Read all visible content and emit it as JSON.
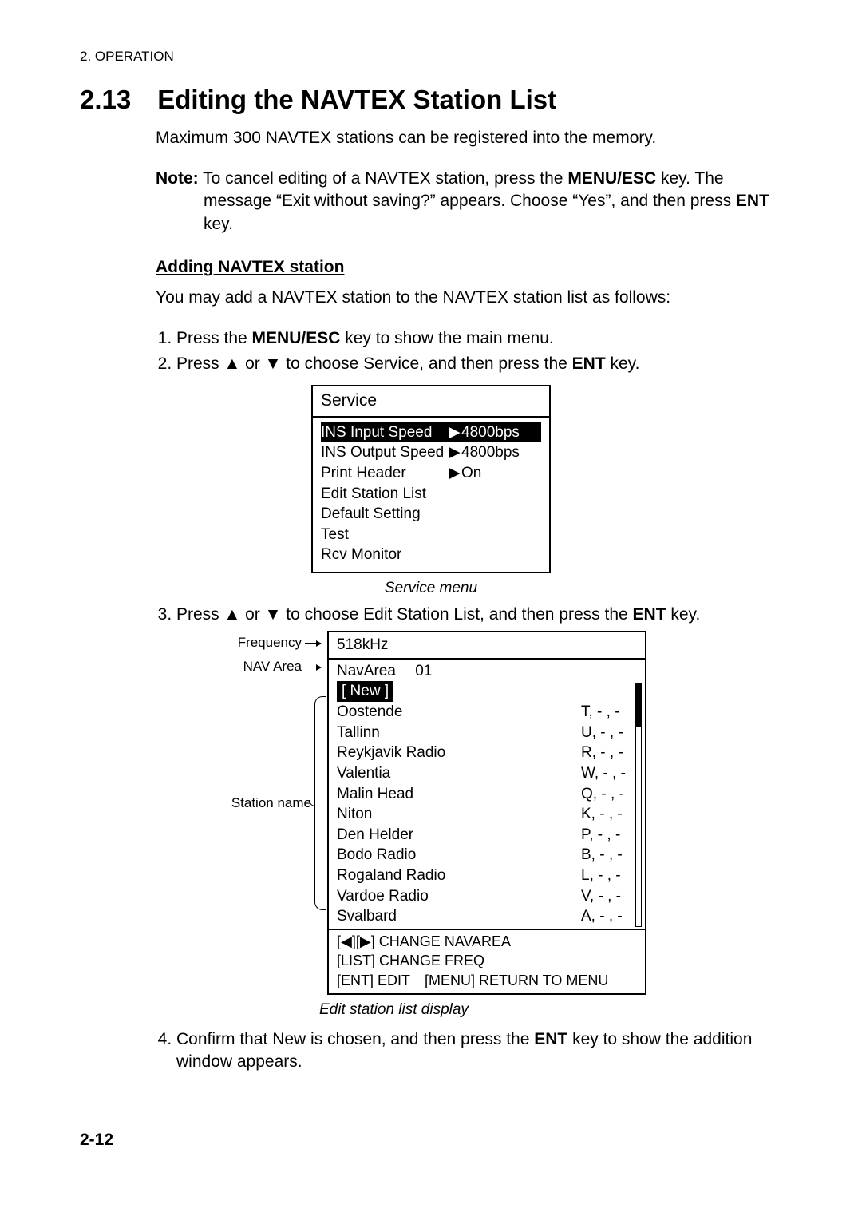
{
  "header": "2. OPERATION",
  "h1": "2.13 Editing the NAVTEX Station List",
  "intro": "Maximum 300 NAVTEX stations can be registered into the memory.",
  "note_label": "Note:",
  "note_body1": " To cancel editing of a NAVTEX station, press the ",
  "note_key1": "MENU/ESC",
  "note_body2": " key. The message “Exit without saving?” appears. Choose “Yes”, and then press ",
  "note_key2": "ENT",
  "note_body3": " key.",
  "add_head": "Adding NAVTEX station",
  "add_intro": "You may add a NAVTEX station to the NAVTEX station list as follows:",
  "step1a": "Press the ",
  "step1key": "MENU/ESC",
  "step1b": " key to show the main menu.",
  "step2a": "Press ▲ or ▼ to choose Service, and then press the ",
  "step2key": "ENT",
  "step2b": " key.",
  "service_menu": {
    "title": "Service",
    "rows": [
      {
        "label": "INS Input Speed",
        "arrow": "▶",
        "val": "4800bps",
        "sel": true
      },
      {
        "label": "INS Output Speed",
        "arrow": "▶",
        "val": "4800bps",
        "sel": false
      },
      {
        "label": "Print Header",
        "arrow": "▶",
        "val": "On",
        "sel": false
      },
      {
        "label": "Edit Station List",
        "arrow": "",
        "val": "",
        "sel": false
      },
      {
        "label": "Default Setting",
        "arrow": "",
        "val": "",
        "sel": false
      },
      {
        "label": "Test",
        "arrow": "",
        "val": "",
        "sel": false
      },
      {
        "label": "Rcv Monitor",
        "arrow": "",
        "val": "",
        "sel": false
      }
    ],
    "caption": "Service menu"
  },
  "step3a": "Press ▲ or ▼ to choose Edit Station List, and then press the ",
  "step3key": "ENT",
  "step3b": " key.",
  "esl": {
    "label_freq": "Frequency",
    "label_nav": "NAV Area",
    "label_station": "Station name",
    "freq": "518kHz",
    "navarea": "NavArea  01",
    "new": "[ New ]",
    "stations": [
      {
        "name": "Oostende",
        "code": "T,  - , -"
      },
      {
        "name": "Tallinn",
        "code": "U, - , -"
      },
      {
        "name": "Reykjavik Radio",
        "code": "R, - , -"
      },
      {
        "name": "Valentia",
        "code": "W, - , -"
      },
      {
        "name": "Malin Head",
        "code": "Q, - , -"
      },
      {
        "name": "Niton",
        "code": "K, - , -"
      },
      {
        "name": "Den Helder",
        "code": "P,  - , -"
      },
      {
        "name": "Bodo Radio",
        "code": "B,  - , -"
      },
      {
        "name": "Rogaland Radio",
        "code": "L,  - , -"
      },
      {
        "name": "Vardoe Radio",
        "code": "V,  - , -"
      },
      {
        "name": "Svalbard",
        "code": "A,  - , -"
      }
    ],
    "foot1": "[◀][▶] CHANGE NAVAREA",
    "foot2": "[LIST] CHANGE FREQ",
    "foot3": "[ENT] EDIT [MENU] RETURN TO MENU",
    "caption": "Edit station list display"
  },
  "step4a": "Confirm that New is chosen, and then press the ",
  "step4key": "ENT",
  "step4b": " key to show the addition window appears.",
  "page_num": "2-12"
}
